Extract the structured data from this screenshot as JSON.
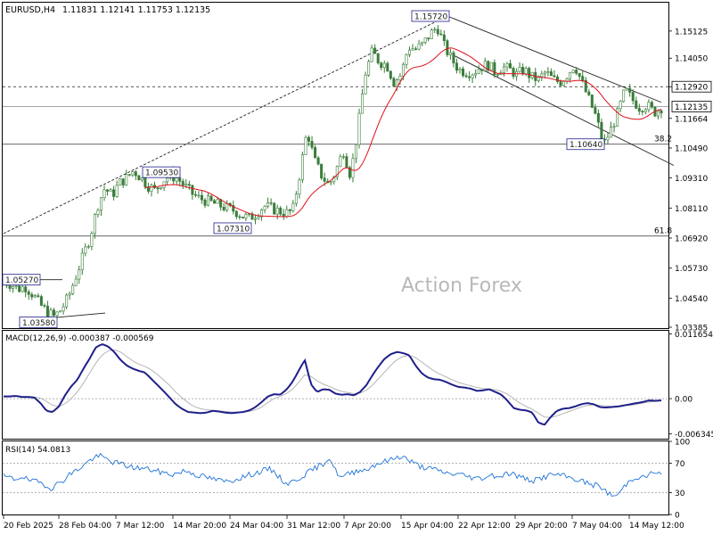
{
  "header": {
    "symbol": "EURUSD,H4",
    "ohlc": "1.11831 1.12141 1.11753 1.12135"
  },
  "watermark": "Action Forex",
  "chart_data": {
    "type": "candlestick",
    "price_panel": {
      "ylim": [
        1.0335,
        1.1625
      ],
      "y_ticks": [
        "1.15125",
        "1.14050",
        "1.12920",
        "1.11664",
        "1.10490",
        "1.09310",
        "1.08110",
        "1.06920",
        "1.05730",
        "1.04540",
        "1.03385"
      ],
      "current_price": "1.12135",
      "current_price_value": 1.12135,
      "resistance_level": "1.12920",
      "resistance_value": 1.1292,
      "fib_levels": [
        {
          "label": "38.2",
          "value": 1.1064
        },
        {
          "label": "61.8",
          "value": 1.07
        }
      ],
      "swing_labels": [
        {
          "text": "1.15720",
          "value": 1.1572
        },
        {
          "text": "1.09530",
          "value": 1.0953
        },
        {
          "text": "1.07310",
          "value": 1.0731
        },
        {
          "text": "1.05270",
          "value": 1.0527
        },
        {
          "text": "1.03580",
          "value": 1.0358
        },
        {
          "text": "1.10640",
          "value": 1.1064
        }
      ],
      "close_path": [
        1.052,
        1.051,
        1.049,
        1.05,
        1.047,
        1.043,
        1.04,
        1.038,
        1.041,
        1.046,
        1.054,
        1.062,
        1.07,
        1.082,
        1.089,
        1.086,
        1.091,
        1.093,
        1.096,
        1.093,
        1.09,
        1.088,
        1.092,
        1.094,
        1.093,
        1.09,
        1.087,
        1.085,
        1.084,
        1.083,
        1.082,
        1.081,
        1.08,
        1.078,
        1.077,
        1.079,
        1.082,
        1.081,
        1.08,
        1.079,
        1.08,
        1.095,
        1.112,
        1.1,
        1.094,
        1.09,
        1.096,
        1.104,
        1.094,
        1.112,
        1.134,
        1.143,
        1.139,
        1.138,
        1.131,
        1.134,
        1.145,
        1.144,
        1.146,
        1.15,
        1.153,
        1.145,
        1.14,
        1.136,
        1.135,
        1.135,
        1.137,
        1.138,
        1.135,
        1.137,
        1.136,
        1.134,
        1.136,
        1.133,
        1.132,
        1.135,
        1.132,
        1.131,
        1.134,
        1.138,
        1.131,
        1.124,
        1.117,
        1.106,
        1.112,
        1.119,
        1.128,
        1.124,
        1.121,
        1.122,
        1.119,
        1.121
      ]
    },
    "macd_panel": {
      "label": "MACD(12,26,9) -0.000387 -0.000569",
      "ylim": [
        -0.0072,
        0.0122
      ],
      "y_ticks": [
        "0.011654",
        "0.00",
        "-0.006345"
      ],
      "macd_path": [
        0.0004,
        0.0004,
        0.0005,
        0.0003,
        0.0003,
        0.0002,
        -0.0008,
        -0.0022,
        -0.0024,
        -0.0014,
        0.0006,
        0.0022,
        0.0034,
        0.0054,
        0.0072,
        0.0092,
        0.0098,
        0.0094,
        0.0084,
        0.007,
        0.006,
        0.0054,
        0.005,
        0.0047,
        0.0036,
        0.0025,
        0.0014,
        0.0002,
        -0.001,
        -0.0018,
        -0.0024,
        -0.0025,
        -0.0026,
        -0.0025,
        -0.0022,
        -0.0023,
        -0.0025,
        -0.0026,
        -0.0025,
        -0.0024,
        -0.0021,
        -0.0015,
        -0.0006,
        0.0004,
        0.0008,
        0.0007,
        0.0016,
        0.003,
        0.005,
        0.007,
        0.0026,
        0.0012,
        0.0017,
        0.0016,
        0.0009,
        0.0007,
        0.0008,
        0.0006,
        0.0012,
        0.0024,
        0.0042,
        0.0058,
        0.0072,
        0.008,
        0.0084,
        0.0082,
        0.0078,
        0.006,
        0.0046,
        0.0038,
        0.0035,
        0.0034,
        0.003,
        0.0025,
        0.0021,
        0.002,
        0.0018,
        0.0014,
        0.0015,
        0.0017,
        0.0012,
        0.0007,
        -0.0004,
        -0.0017,
        -0.002,
        -0.0021,
        -0.0025,
        -0.0043,
        -0.0047,
        -0.0033,
        -0.0022,
        -0.0018,
        -0.0017,
        -0.0014,
        -0.001,
        -0.0008,
        -0.001,
        -0.0015,
        -0.0016,
        -0.0015,
        -0.0014,
        -0.0012,
        -0.001,
        -0.0008,
        -0.0006,
        -0.0003,
        -0.0004,
        -0.0003
      ],
      "signal_path": [
        0.0005,
        0.0005,
        0.0005,
        0.0004,
        0.0004,
        0.0003,
        0.0001,
        -0.0005,
        -0.0012,
        -0.0014,
        -0.0009,
        0.0,
        0.0012,
        0.0028,
        0.0046,
        0.0064,
        0.0078,
        0.0086,
        0.0088,
        0.0084,
        0.0076,
        0.0068,
        0.0062,
        0.0058,
        0.0052,
        0.0044,
        0.0034,
        0.0024,
        0.0012,
        0.0002,
        -0.0007,
        -0.0014,
        -0.0018,
        -0.002,
        -0.0021,
        -0.0022,
        -0.0023,
        -0.0024,
        -0.0024,
        -0.0024,
        -0.0023,
        -0.002,
        -0.0015,
        -0.0007,
        0.0,
        0.0004,
        0.0009,
        0.0017,
        0.0029,
        0.0043,
        0.004,
        0.0032,
        0.0026,
        0.0022,
        0.0017,
        0.0013,
        0.0011,
        0.0009,
        0.001,
        0.0015,
        0.0024,
        0.0036,
        0.0048,
        0.006,
        0.007,
        0.0076,
        0.0078,
        0.0074,
        0.0066,
        0.0058,
        0.005,
        0.0044,
        0.0039,
        0.0034,
        0.0029,
        0.0026,
        0.0023,
        0.002,
        0.0018,
        0.0017,
        0.0016,
        0.0013,
        0.0008,
        0.0,
        -0.0008,
        -0.0014,
        -0.0019,
        -0.0026,
        -0.0033,
        -0.0034,
        -0.0031,
        -0.0027,
        -0.0023,
        -0.0019,
        -0.0015,
        -0.0012,
        -0.0011,
        -0.0012,
        -0.0013,
        -0.0014,
        -0.0014,
        -0.0013,
        -0.0012,
        -0.001,
        -0.0008,
        -0.0006,
        -0.0005,
        -0.0004
      ]
    },
    "rsi_panel": {
      "label": "RSI(14) 54.0813",
      "ylim": [
        0,
        100
      ],
      "y_ticks": [
        "100",
        "70",
        "30",
        "0"
      ],
      "levels": [
        70,
        30
      ],
      "rsi_path": [
        52,
        50,
        48,
        53,
        47,
        45,
        44,
        40,
        36,
        42,
        48,
        55,
        60,
        66,
        72,
        78,
        80,
        76,
        72,
        70,
        68,
        65,
        64,
        63,
        62,
        60,
        58,
        56,
        55,
        57,
        60,
        58,
        54,
        52,
        50,
        48,
        46,
        45,
        47,
        50,
        52,
        55,
        57,
        60,
        62,
        58,
        48,
        42,
        45,
        50,
        55,
        60,
        65,
        70,
        78,
        60,
        50,
        55,
        58,
        62,
        60,
        66,
        70,
        72,
        74,
        78,
        80,
        75,
        70,
        66,
        64,
        62,
        60,
        58,
        55,
        56,
        54,
        52,
        50,
        49,
        52,
        54,
        52,
        55,
        57,
        53,
        50,
        48,
        46,
        50,
        52,
        55,
        54,
        52,
        50,
        48,
        45,
        42,
        40,
        38,
        30,
        25,
        28,
        40,
        48,
        52,
        50,
        55,
        58,
        54
      ]
    },
    "x_ticks": [
      "20 Feb 2025",
      "28 Feb 04:00",
      "7 Mar 12:00",
      "14 Mar 20:00",
      "24 Mar 04:00",
      "31 Mar 12:00",
      "7 Apr 20:00",
      "15 Apr 04:00",
      "22 Apr 12:00",
      "29 Apr 20:00",
      "7 May 04:00",
      "14 May 12:00"
    ]
  },
  "colors": {
    "candle": "#3a7c3a",
    "ma": "#e0101a",
    "macd": "#1f1f8a",
    "signal": "#b5b5b5",
    "rsi": "#1f72d6",
    "trend": "#202020",
    "label_box": "#1f1f8a"
  }
}
